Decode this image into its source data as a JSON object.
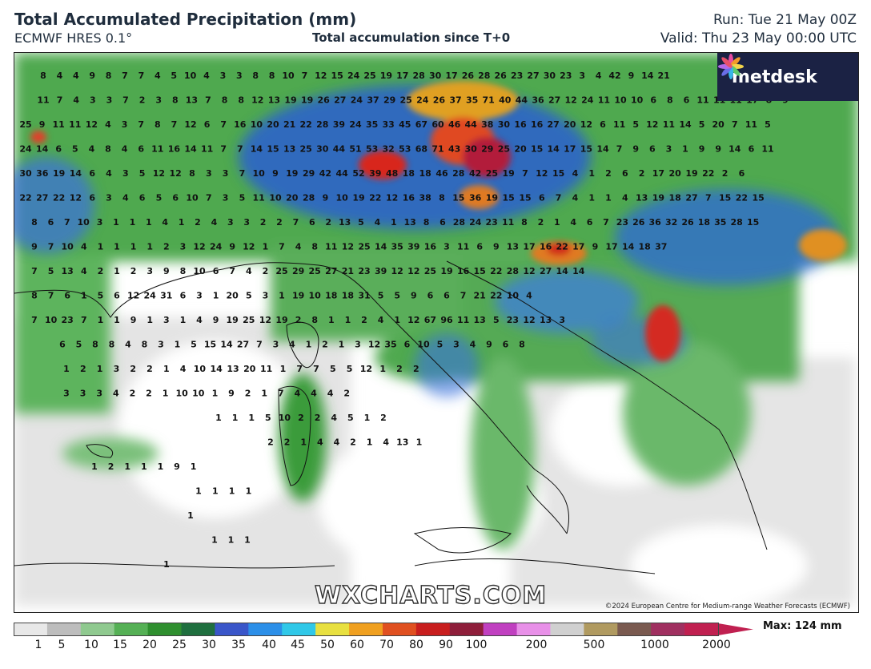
{
  "header": {
    "title": "Total Accumulated Precipitation (mm)",
    "model": "ECMWF HRES 0.1°",
    "accumulation": "Total accumulation since T+0",
    "run": "Run: Tue 21 May 00Z",
    "valid": "Valid: Thu 23 May 00:00 UTC"
  },
  "logo": {
    "text": "metdesk",
    "icon": "flower-burst-icon"
  },
  "watermark": "WXCHARTS.COM",
  "copyright": "©2024 European Centre for Medium-range Weather Forecasts (ECMWF)",
  "legend": {
    "ticks": [
      "1",
      "5",
      "10",
      "15",
      "20",
      "25",
      "30",
      "35",
      "40",
      "45",
      "50",
      "60",
      "70",
      "80",
      "90",
      "100",
      "200",
      "500",
      "1000",
      "2000"
    ],
    "max_label": "Max: 124 mm",
    "colors": [
      "#e8e8e8",
      "#bdbdbd",
      "#8fc98f",
      "#55b055",
      "#2f8f2f",
      "#1f6f3f",
      "#3a56c9",
      "#2c8fe8",
      "#30c8e8",
      "#e8e040",
      "#f0a020",
      "#e05020",
      "#c81e1e",
      "#8e1e3a",
      "#c040c0",
      "#e890e8",
      "#d0d0d0",
      "#b09a60",
      "#7a5a50",
      "#a03060",
      "#c02050"
    ]
  },
  "map": {
    "values": [
      [
        "8",
        "4",
        "4",
        "9",
        "8",
        "7",
        "7",
        "4",
        "5",
        "10",
        "4",
        "3",
        "3",
        "8",
        "8",
        "10",
        "7",
        "12",
        "15",
        "24",
        "25",
        "19",
        "17",
        "28",
        "30",
        "17",
        "26",
        "28",
        "26",
        "23",
        "27",
        "30",
        "23",
        "3",
        "4",
        "42",
        "9",
        "14",
        "21"
      ],
      [
        "11",
        "7",
        "4",
        "3",
        "3",
        "7",
        "2",
        "3",
        "8",
        "13",
        "7",
        "8",
        "8",
        "12",
        "13",
        "19",
        "19",
        "26",
        "27",
        "24",
        "37",
        "29",
        "25",
        "24",
        "26",
        "37",
        "35",
        "71",
        "40",
        "44",
        "36",
        "27",
        "12",
        "24",
        "11",
        "10",
        "10",
        "6",
        "8",
        "6",
        "11",
        "11",
        "11",
        "17",
        "8",
        "9"
      ],
      [
        "25",
        "9",
        "11",
        "11",
        "12",
        "4",
        "3",
        "7",
        "8",
        "7",
        "12",
        "6",
        "7",
        "16",
        "10",
        "20",
        "21",
        "22",
        "28",
        "39",
        "24",
        "35",
        "33",
        "45",
        "67",
        "60",
        "46",
        "44",
        "38",
        "30",
        "16",
        "16",
        "27",
        "20",
        "12",
        "6",
        "11",
        "5",
        "12",
        "11",
        "14",
        "5",
        "20",
        "7",
        "11",
        "5"
      ],
      [
        "24",
        "14",
        "6",
        "5",
        "4",
        "8",
        "4",
        "6",
        "11",
        "16",
        "14",
        "11",
        "7",
        "7",
        "14",
        "15",
        "13",
        "25",
        "30",
        "44",
        "51",
        "53",
        "32",
        "53",
        "68",
        "71",
        "43",
        "30",
        "29",
        "25",
        "20",
        "15",
        "14",
        "17",
        "15",
        "14",
        "7",
        "9",
        "6",
        "3",
        "1",
        "9",
        "9",
        "14",
        "6",
        "11"
      ],
      [
        "30",
        "36",
        "19",
        "14",
        "6",
        "4",
        "3",
        "5",
        "12",
        "12",
        "8",
        "3",
        "3",
        "7",
        "10",
        "9",
        "19",
        "29",
        "42",
        "44",
        "52",
        "39",
        "48",
        "18",
        "18",
        "46",
        "28",
        "42",
        "25",
        "19",
        "7",
        "12",
        "15",
        "4",
        "1",
        "2",
        "6",
        "2",
        "17",
        "20",
        "19",
        "22",
        "2",
        "6"
      ],
      [
        "22",
        "27",
        "22",
        "12",
        "6",
        "3",
        "4",
        "6",
        "5",
        "6",
        "10",
        "7",
        "3",
        "5",
        "11",
        "10",
        "20",
        "28",
        "9",
        "10",
        "19",
        "22",
        "12",
        "16",
        "38",
        "8",
        "15",
        "36",
        "19",
        "15",
        "15",
        "6",
        "7",
        "4",
        "1",
        "1",
        "4",
        "13",
        "19",
        "18",
        "27",
        "7",
        "15",
        "22",
        "15"
      ],
      [
        "8",
        "6",
        "7",
        "10",
        "3",
        "1",
        "1",
        "1",
        "4",
        "1",
        "2",
        "4",
        "3",
        "3",
        "2",
        "2",
        "7",
        "6",
        "2",
        "13",
        "5",
        "4",
        "1",
        "13",
        "8",
        "6",
        "28",
        "24",
        "23",
        "11",
        "8",
        "2",
        "1",
        "4",
        "6",
        "7",
        "23",
        "26",
        "36",
        "32",
        "26",
        "18",
        "35",
        "28",
        "15"
      ],
      [
        "9",
        "7",
        "10",
        "4",
        "1",
        "1",
        "1",
        "1",
        "2",
        "3",
        "12",
        "24",
        "9",
        "12",
        "1",
        "7",
        "4",
        "8",
        "11",
        "12",
        "25",
        "14",
        "35",
        "39",
        "16",
        "3",
        "11",
        "6",
        "9",
        "13",
        "17",
        "16",
        "22",
        "17",
        "9",
        "17",
        "14",
        "18",
        "37"
      ],
      [
        "7",
        "5",
        "13",
        "4",
        "2",
        "1",
        "2",
        "3",
        "9",
        "8",
        "10",
        "6",
        "7",
        "4",
        "2",
        "25",
        "29",
        "25",
        "27",
        "21",
        "23",
        "39",
        "12",
        "12",
        "25",
        "19",
        "16",
        "15",
        "22",
        "28",
        "12",
        "27",
        "14",
        "14"
      ],
      [
        "8",
        "7",
        "6",
        "1",
        "5",
        "6",
        "12",
        "24",
        "31",
        "6",
        "3",
        "1",
        "20",
        "5",
        "3",
        "1",
        "19",
        "10",
        "18",
        "18",
        "31",
        "5",
        "5",
        "9",
        "6",
        "6",
        "7",
        "21",
        "22",
        "10",
        "4"
      ],
      [
        "7",
        "10",
        "23",
        "7",
        "1",
        "1",
        "9",
        "1",
        "3",
        "1",
        "4",
        "9",
        "19",
        "25",
        "12",
        "19",
        "2",
        "8",
        "1",
        "1",
        "2",
        "4",
        "1",
        "12",
        "67",
        "96",
        "11",
        "13",
        "5",
        "23",
        "12",
        "13",
        "3"
      ],
      [
        "6",
        "5",
        "8",
        "8",
        "4",
        "8",
        "3",
        "1",
        "5",
        "15",
        "14",
        "27",
        "7",
        "3",
        "4",
        "1",
        "2",
        "1",
        "3",
        "12",
        "35",
        "6",
        "10",
        "5",
        "3",
        "4",
        "9",
        "6",
        "8"
      ],
      [
        "1",
        "2",
        "1",
        "3",
        "2",
        "2",
        "1",
        "4",
        "10",
        "14",
        "13",
        "20",
        "11",
        "1",
        "7",
        "7",
        "5",
        "5",
        "12",
        "1",
        "2",
        "2"
      ],
      [
        "3",
        "3",
        "3",
        "4",
        "2",
        "2",
        "1",
        "10",
        "10",
        "1",
        "9",
        "2",
        "1",
        "7",
        "4",
        "4",
        "4",
        "2"
      ],
      [
        "1",
        "1",
        "1",
        "5",
        "10",
        "2",
        "2",
        "4",
        "5",
        "1",
        "2"
      ],
      [
        "2",
        "2",
        "1",
        "4",
        "4",
        "2",
        "1",
        "4",
        "13",
        "1"
      ],
      [
        "1",
        "2",
        "1",
        "1",
        "1",
        "9",
        "1"
      ],
      [
        "1",
        "1",
        "1",
        "1"
      ],
      [
        "1"
      ],
      [
        "1",
        "1",
        "1"
      ],
      [
        "1"
      ]
    ]
  }
}
